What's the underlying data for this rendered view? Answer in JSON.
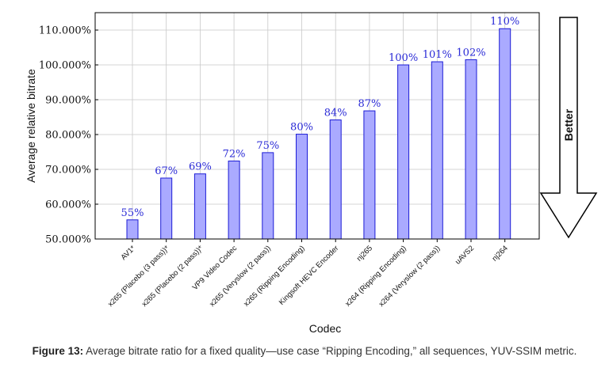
{
  "chart_data": {
    "type": "bar",
    "categories": [
      "AV1*",
      "x265 (Placebo (3 pass))*",
      "x265 (Placebo (2 pass))*",
      "VP9 Video Codec",
      "x265 (Veryslow (2 pass))",
      "x265 (Ripping Encoding)",
      "Kingsoft HEVC Encoder",
      "nj265",
      "x264 (Ripping Encoding)",
      "x264 (Veryslow (2 pass))",
      "uAVS2",
      "nj264"
    ],
    "values": [
      55.5,
      67.5,
      68.7,
      72.4,
      74.8,
      80.1,
      84.2,
      86.8,
      100.0,
      100.9,
      101.5,
      110.4
    ],
    "value_labels": [
      "55%",
      "67%",
      "69%",
      "72%",
      "75%",
      "80%",
      "84%",
      "87%",
      "100%",
      "101%",
      "102%",
      "110%"
    ],
    "ylim": [
      50,
      115
    ],
    "yticks": [
      50,
      60,
      70,
      80,
      90,
      100,
      110
    ],
    "ytick_labels": [
      "50.000%",
      "60.000%",
      "70.000%",
      "80.000%",
      "90.000%",
      "100.000%",
      "110.000%"
    ],
    "xlabel": "Codec",
    "ylabel": "Average relative bitrate",
    "title": "",
    "grid": true,
    "bar_color": "#aaaaff",
    "bar_edge_color": "#1c1cd6",
    "label_color": "#2a2ad6",
    "annotation": "Better"
  },
  "caption": {
    "figure_label": "Figure 13:",
    "text": "Average bitrate ratio for a fixed quality—use case “Ripping Encoding,” all sequences, YUV-SSIM metric."
  }
}
